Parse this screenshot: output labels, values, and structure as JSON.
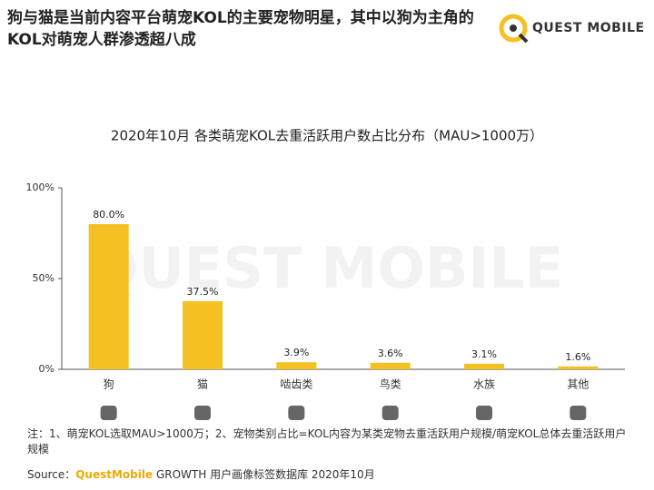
{
  "header": {
    "title": "狗与猫是当前内容平台萌宠KOL的主要宠物明星，其中以狗为主角的KOL对萌宠人群渗透超八成",
    "logo": "QUEST MOBILE"
  },
  "chart_data": {
    "type": "bar",
    "title": "2020年10月 各类萌宠KOL去重活跃用户数占比分布（MAU>1000万）",
    "watermark": "QUEST MOBILE",
    "categories": [
      "狗",
      "猫",
      "啮齿类",
      "鸟类",
      "水族",
      "其他"
    ],
    "values": [
      80.0,
      37.5,
      3.9,
      3.6,
      3.1,
      1.6
    ],
    "value_labels": [
      "80.0%",
      "37.5%",
      "3.9%",
      "3.6%",
      "3.1%",
      "1.6%"
    ],
    "color": "#f5c021",
    "ylim": [
      0,
      100
    ],
    "yticks": [
      {
        "value": 0,
        "label": "0%"
      },
      {
        "value": 50,
        "label": "50%"
      },
      {
        "value": 100,
        "label": "100%"
      }
    ],
    "grid": false
  },
  "footer": {
    "note": "注：1、萌宠KOL选取MAU>1000万；2、宠物类别占比=KOL内容为某类宠物去重活跃用户规模/萌宠KOL总体去重活跃用户规模",
    "source_prefix": "Source：",
    "source_brand": "QuestMobile",
    "source_text": "GROWTH 用户画像标签数据库 2020年10月"
  }
}
